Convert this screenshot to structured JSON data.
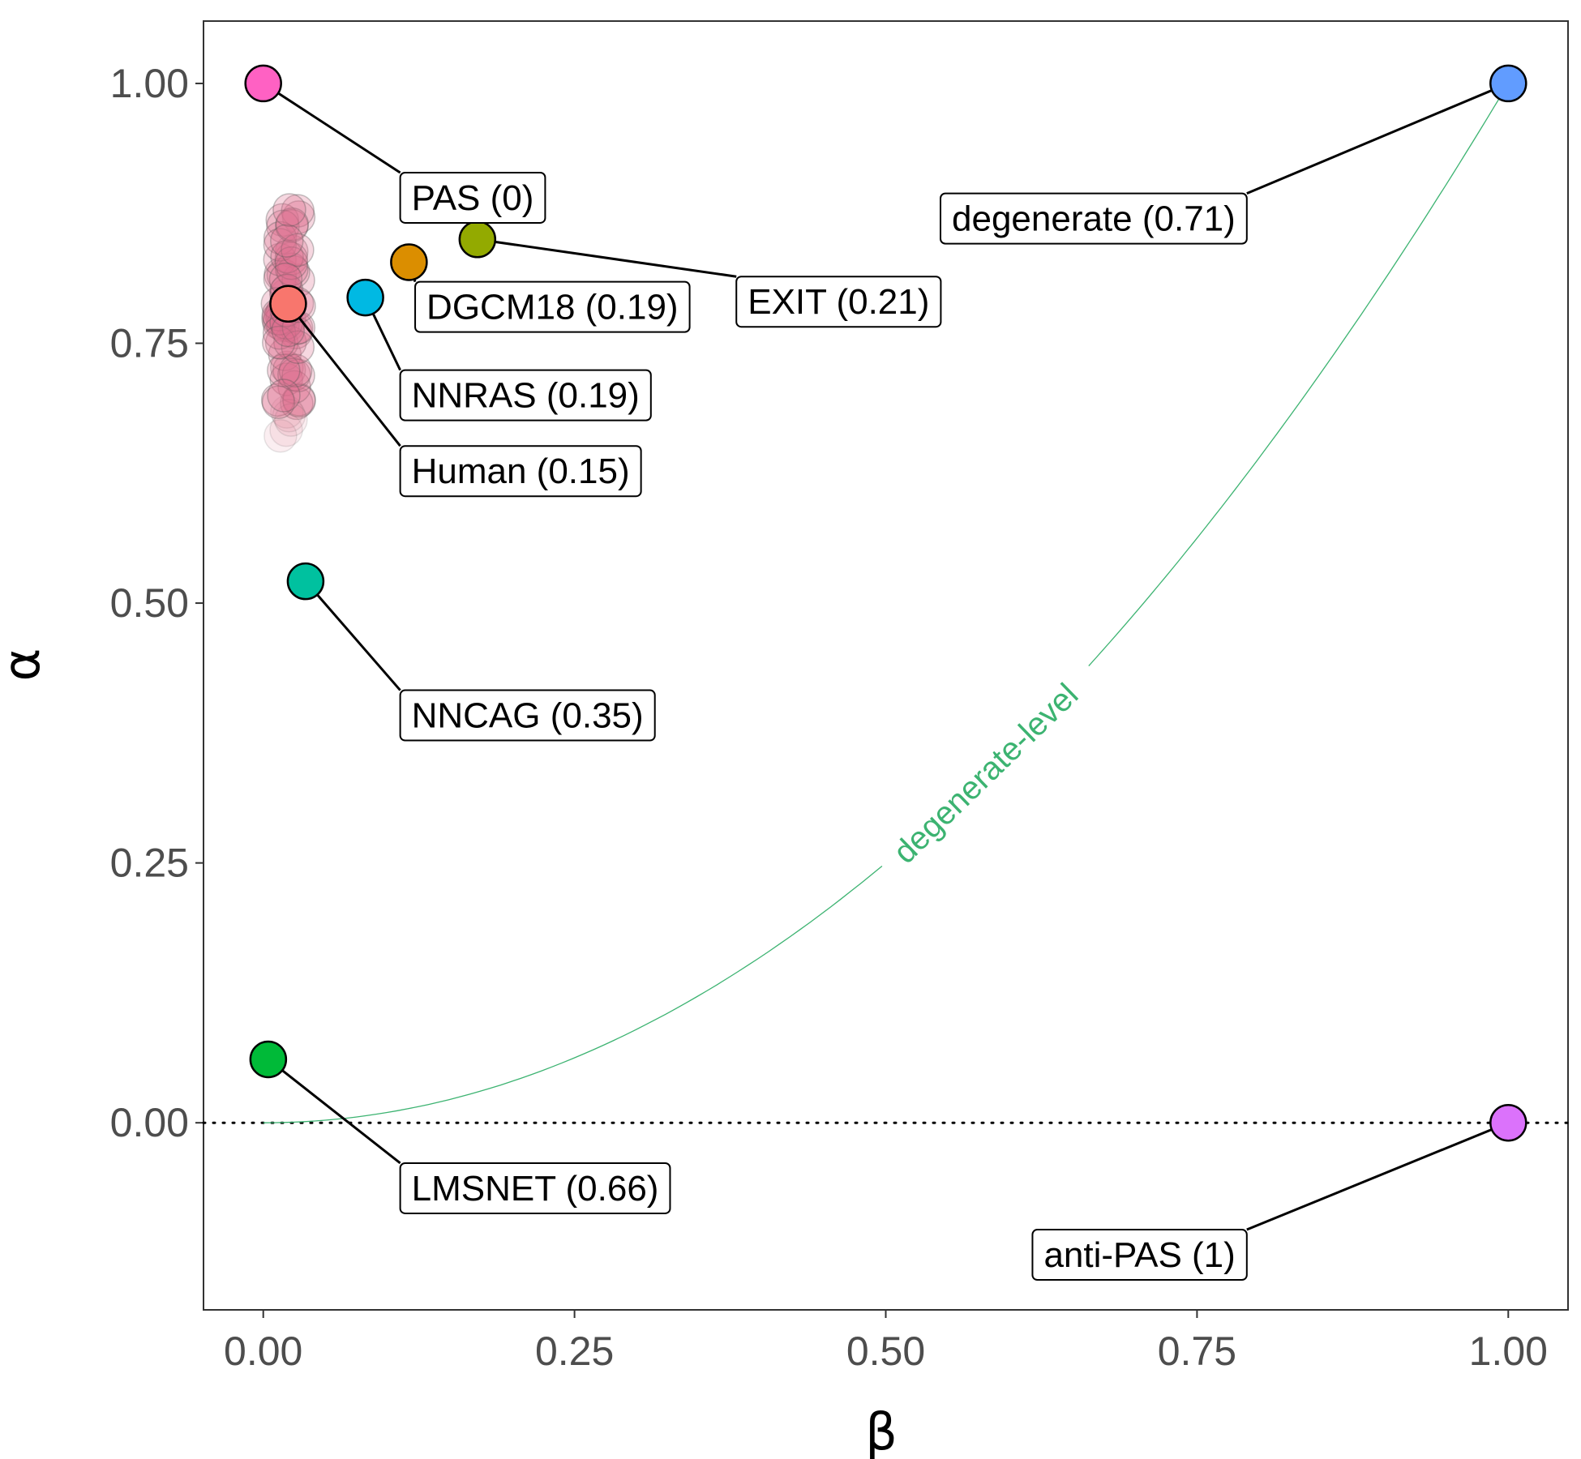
{
  "chart_data": {
    "type": "scatter",
    "xlabel": "β",
    "ylabel": "α",
    "xlim": [
      -0.048,
      1.048
    ],
    "ylim": [
      -0.18,
      1.06
    ],
    "x_ticks": [
      0,
      0.25,
      0.5,
      0.75,
      1
    ],
    "x_tick_labels": [
      "0.00",
      "0.25",
      "0.50",
      "0.75",
      "1.00"
    ],
    "y_ticks": [
      0,
      0.25,
      0.5,
      0.75,
      1
    ],
    "y_tick_labels": [
      "0.00",
      "0.25",
      "0.50",
      "0.75",
      "1.00"
    ],
    "reference_line": {
      "y": 0,
      "style": "dotted"
    },
    "points": [
      {
        "label": "PAS (0)",
        "x": 0.0,
        "y": 1.0,
        "color": "#ff61c3",
        "label_x": 0.11,
        "label_y": 0.89,
        "label_anchor": "left"
      },
      {
        "label": "degenerate (0.71)",
        "x": 1.0,
        "y": 1.0,
        "color": "#619cff",
        "label_x": 0.79,
        "label_y": 0.87,
        "label_anchor": "right"
      },
      {
        "label": "EXIT (0.21)",
        "x": 0.172,
        "y": 0.85,
        "color": "#93aa00",
        "label_x": 0.38,
        "label_y": 0.79,
        "label_anchor": "left"
      },
      {
        "label": "DGCM18 (0.19)",
        "x": 0.117,
        "y": 0.828,
        "color": "#db8e00",
        "label_x": 0.122,
        "label_y": 0.785,
        "label_anchor": "left"
      },
      {
        "label": "NNRAS (0.19)",
        "x": 0.082,
        "y": 0.794,
        "color": "#00b9e3",
        "label_x": 0.11,
        "label_y": 0.7,
        "label_anchor": "left"
      },
      {
        "label": "Human (0.15)",
        "x": 0.02,
        "y": 0.788,
        "color": "#f8766d",
        "label_x": 0.11,
        "label_y": 0.627,
        "label_anchor": "left"
      },
      {
        "label": "NNCAG (0.35)",
        "x": 0.034,
        "y": 0.521,
        "color": "#00c19f",
        "label_x": 0.11,
        "label_y": 0.392,
        "label_anchor": "left"
      },
      {
        "label": "LMSNET (0.66)",
        "x": 0.004,
        "y": 0.061,
        "color": "#00ba38",
        "label_x": 0.11,
        "label_y": -0.063,
        "label_anchor": "left"
      },
      {
        "label": "anti-PAS (1)",
        "x": 1.0,
        "y": 0.0,
        "color": "#db72fb",
        "label_x": 0.79,
        "label_y": -0.127,
        "label_anchor": "right"
      }
    ],
    "human_cloud": {
      "color": "#e0718f",
      "x_center": 0.02,
      "y_min": 0.655,
      "y_max": 0.895
    },
    "curve": {
      "label": "degenerate-level",
      "color": "#3cb371",
      "label_t": 0.58
    }
  }
}
